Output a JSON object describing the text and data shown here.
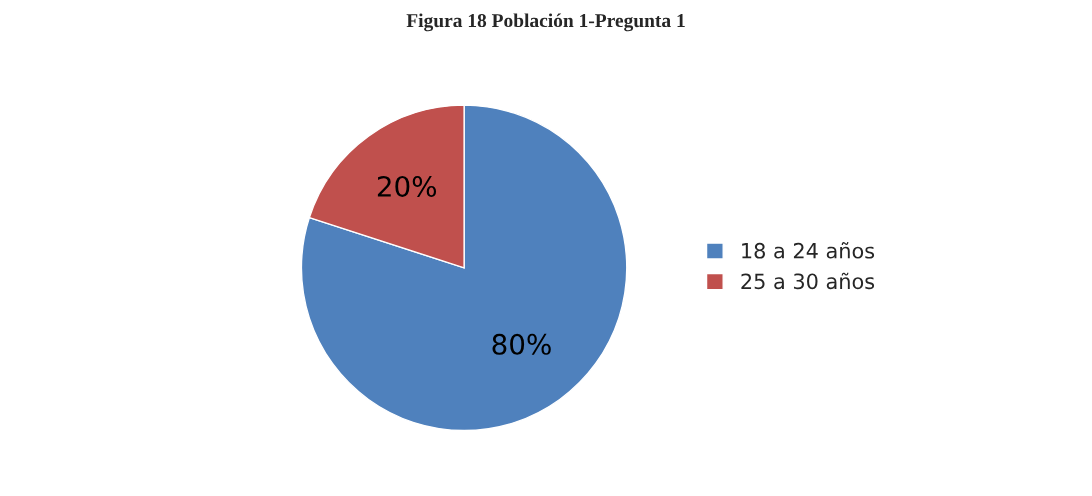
{
  "chart_data": {
    "type": "pie",
    "title": "Figura 18 Población 1-Pregunta 1",
    "categories": [
      "18 a 24 años",
      "25 a 30 años"
    ],
    "values": [
      80,
      20
    ],
    "colors": [
      "#4f81bd",
      "#c0504d"
    ],
    "value_labels": [
      "80%",
      "20%"
    ],
    "legend": "right"
  }
}
